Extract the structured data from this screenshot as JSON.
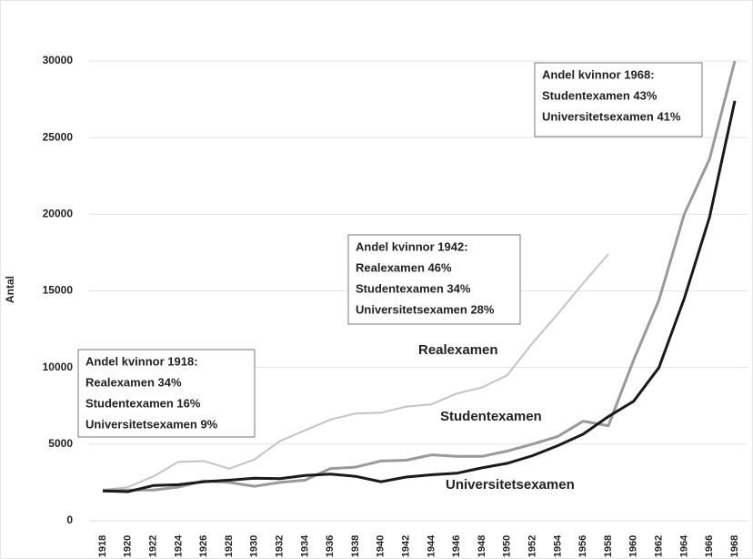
{
  "chart_data": {
    "type": "line",
    "y_label": "Antal",
    "categories": [
      "1918",
      "1920",
      "1922",
      "1924",
      "1926",
      "1928",
      "1930",
      "1932",
      "1934",
      "1936",
      "1938",
      "1940",
      "1942",
      "1944",
      "1946",
      "1948",
      "1950",
      "1952",
      "1954",
      "1956",
      "1958",
      "1960",
      "1962",
      "1964",
      "1966",
      "1968"
    ],
    "series": [
      {
        "name": "Realexamen",
        "color": "#c4c4c4",
        "values": [
          2000,
          2200,
          2900,
          3850,
          3900,
          3400,
          4000,
          5200,
          5900,
          6600,
          7000,
          7050,
          7450,
          7600,
          8300,
          8700,
          9500,
          11600,
          13500,
          15500,
          17400,
          null,
          null,
          null,
          null,
          null
        ]
      },
      {
        "name": "Studentexamen",
        "color": "#9a9a9a",
        "values": [
          2000,
          2000,
          2000,
          2200,
          2600,
          2500,
          2250,
          2500,
          2650,
          3400,
          3500,
          3900,
          3950,
          4300,
          4200,
          4200,
          4550,
          5000,
          5500,
          6500,
          6200,
          10500,
          14400,
          20000,
          23600,
          30000
        ]
      },
      {
        "name": "Universitetsexamen",
        "color": "#1a1a1a",
        "values": [
          1950,
          1900,
          2300,
          2350,
          2550,
          2650,
          2780,
          2750,
          2950,
          3050,
          2900,
          2550,
          2850,
          3000,
          3100,
          3450,
          3750,
          4250,
          4900,
          5650,
          6800,
          7800,
          10000,
          14500,
          19800,
          27400
        ]
      }
    ],
    "ylim": [
      0,
      30000
    ],
    "yticks": [
      0,
      5000,
      10000,
      15000,
      20000,
      25000,
      30000
    ],
    "grid": true,
    "annotations": [
      [
        "Andel kvinnor 1918:",
        "Realexamen 34%",
        "Studentexamen 16%",
        "Universitetsexamen 9%"
      ],
      [
        "Andel kvinnor 1942:",
        "Realexamen  46%",
        "Studentexamen 34%",
        "Universitetsexamen 28%"
      ],
      [
        "Andel kvinnor 1968:",
        "Studentexamen 43%",
        "Universitetsexamen 41%"
      ]
    ]
  }
}
